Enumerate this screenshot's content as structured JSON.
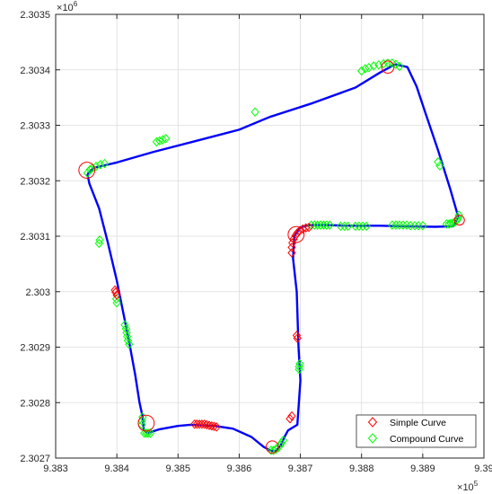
{
  "chart_data": {
    "type": "scatter",
    "title": "",
    "xlabel": "",
    "ylabel": "",
    "grid": true,
    "legend_position": "bottom-right",
    "x_exponent_label": "×10^5",
    "y_exponent_label": "×10^6",
    "x_exponent_base": "10",
    "x_exponent_power": "5",
    "y_exponent_base": "10",
    "y_exponent_power": "6",
    "xlim": [
      938300,
      939000
    ],
    "ylim": [
      2302700,
      2303500
    ],
    "x_ticks": [
      938300,
      938400,
      938500,
      938600,
      938700,
      938800,
      938900,
      939000
    ],
    "y_ticks": [
      2302700,
      2302800,
      2302900,
      2303000,
      2303100,
      2303200,
      2303300,
      2303400,
      2303500
    ],
    "x_tick_labels": [
      "9.383",
      "9.384",
      "9.385",
      "9.386",
      "9.387",
      "9.388",
      "9.389",
      "9.39"
    ],
    "y_tick_labels": [
      "2.3027",
      "2.3028",
      "2.3029",
      "2.303",
      "2.3031",
      "2.3032",
      "2.3033",
      "2.3034",
      "2.3035"
    ],
    "colors": {
      "route": "#0000ff",
      "simple": "#ff0000",
      "compound": "#00ff00",
      "circle": "#ff0000",
      "grid": "#dcdcdc",
      "axis": "#262626"
    },
    "route": [
      [
        938352,
        2303212
      ],
      [
        938362,
        2303223
      ],
      [
        938400,
        2303233
      ],
      [
        938460,
        2303252
      ],
      [
        938530,
        2303272
      ],
      [
        938600,
        2303292
      ],
      [
        938650,
        2303315
      ],
      [
        938720,
        2303340
      ],
      [
        938790,
        2303368
      ],
      [
        938830,
        2303395
      ],
      [
        938855,
        2303410
      ],
      [
        938875,
        2303405
      ],
      [
        938890,
        2303370
      ],
      [
        938905,
        2303320
      ],
      [
        938925,
        2303255
      ],
      [
        938945,
        2303185
      ],
      [
        938958,
        2303135
      ],
      [
        938950,
        2303118
      ],
      [
        938920,
        2303117
      ],
      [
        938870,
        2303118
      ],
      [
        938830,
        2303119
      ],
      [
        938780,
        2303119
      ],
      [
        938740,
        2303120
      ],
      [
        938715,
        2303120
      ],
      [
        938700,
        2303116
      ],
      [
        938690,
        2303100
      ],
      [
        938688,
        2303060
      ],
      [
        938694,
        2303000
      ],
      [
        938697,
        2302900
      ],
      [
        938700,
        2302840
      ],
      [
        938695,
        2302760
      ],
      [
        938680,
        2302750
      ],
      [
        938675,
        2302740
      ],
      [
        938668,
        2302723
      ],
      [
        938660,
        2302713
      ],
      [
        938652,
        2302713
      ],
      [
        938640,
        2302720
      ],
      [
        938620,
        2302738
      ],
      [
        938590,
        2302753
      ],
      [
        938560,
        2302758
      ],
      [
        938520,
        2302760
      ],
      [
        938500,
        2302758
      ],
      [
        938470,
        2302752
      ],
      [
        938450,
        2302745
      ],
      [
        938444,
        2302752
      ],
      [
        938442,
        2302775
      ],
      [
        938437,
        2302800
      ],
      [
        938430,
        2302850
      ],
      [
        938420,
        2302910
      ],
      [
        938409,
        2302970
      ],
      [
        938400,
        2303020
      ],
      [
        938385,
        2303090
      ],
      [
        938371,
        2303150
      ],
      [
        938355,
        2303195
      ],
      [
        938352,
        2303212
      ]
    ],
    "series": [
      {
        "name": "Simple Curve",
        "marker": "diamond",
        "points": [
          [
            938397,
            2303003
          ],
          [
            938398,
            2302999
          ],
          [
            938400,
            2302994
          ],
          [
            938527,
            2302761
          ],
          [
            938531,
            2302761
          ],
          [
            938535,
            2302761
          ],
          [
            938539,
            2302761
          ],
          [
            938543,
            2302761
          ],
          [
            938547,
            2302760
          ],
          [
            938551,
            2302759
          ],
          [
            938555,
            2302758
          ],
          [
            938559,
            2302757
          ],
          [
            938563,
            2302756
          ],
          [
            938683,
            2302771
          ],
          [
            938686,
            2302776
          ],
          [
            938694,
            2302921
          ],
          [
            938695,
            2302916
          ],
          [
            938686,
            2303070
          ],
          [
            938686,
            2303080
          ],
          [
            938687,
            2303088
          ],
          [
            938689,
            2303095
          ],
          [
            938692,
            2303101
          ],
          [
            938695,
            2303106
          ],
          [
            938699,
            2303110
          ],
          [
            938704,
            2303113
          ],
          [
            938709,
            2303115
          ],
          [
            938714,
            2303116
          ]
        ]
      },
      {
        "name": "Compound Curve",
        "marker": "diamond",
        "points": [
          [
            938352,
            2303214
          ],
          [
            938356,
            2303220
          ],
          [
            938360,
            2303223
          ],
          [
            938366,
            2303226
          ],
          [
            938373,
            2303229
          ],
          [
            938380,
            2303231
          ],
          [
            938465,
            2303270
          ],
          [
            938470,
            2303272
          ],
          [
            938475,
            2303274
          ],
          [
            938480,
            2303276
          ],
          [
            938626,
            2303324
          ],
          [
            938800,
            2303398
          ],
          [
            938806,
            2303402
          ],
          [
            938812,
            2303404
          ],
          [
            938820,
            2303407
          ],
          [
            938828,
            2303409
          ],
          [
            938836,
            2303411
          ],
          [
            938843,
            2303412
          ],
          [
            938850,
            2303412
          ],
          [
            938856,
            2303410
          ],
          [
            938862,
            2303406
          ],
          [
            938925,
            2303234
          ],
          [
            938928,
            2303227
          ],
          [
            938939,
            2303122
          ],
          [
            938943,
            2303122
          ],
          [
            938946,
            2303123
          ],
          [
            938950,
            2303124
          ],
          [
            938953,
            2303126
          ],
          [
            938956,
            2303129
          ],
          [
            938958,
            2303133
          ],
          [
            938959,
            2303138
          ],
          [
            938900,
            2303119
          ],
          [
            938893,
            2303119
          ],
          [
            938887,
            2303119
          ],
          [
            938880,
            2303119
          ],
          [
            938874,
            2303120
          ],
          [
            938868,
            2303120
          ],
          [
            938862,
            2303120
          ],
          [
            938856,
            2303120
          ],
          [
            938850,
            2303120
          ],
          [
            938808,
            2303118
          ],
          [
            938802,
            2303118
          ],
          [
            938796,
            2303118
          ],
          [
            938790,
            2303118
          ],
          [
            938778,
            2303118
          ],
          [
            938772,
            2303118
          ],
          [
            938766,
            2303118
          ],
          [
            938748,
            2303120
          ],
          [
            938743,
            2303120
          ],
          [
            938738,
            2303120
          ],
          [
            938733,
            2303120
          ],
          [
            938728,
            2303120
          ],
          [
            938723,
            2303120
          ],
          [
            938718,
            2303120
          ],
          [
            938698,
            2302860
          ],
          [
            938698,
            2302865
          ],
          [
            938699,
            2302870
          ],
          [
            938652,
            2302714
          ],
          [
            938656,
            2302714
          ],
          [
            938660,
            2302716
          ],
          [
            938664,
            2302719
          ],
          [
            938667,
            2302723
          ],
          [
            938669,
            2302727
          ],
          [
            938672,
            2302732
          ],
          [
            938445,
            2302745
          ],
          [
            938448,
            2302745
          ],
          [
            938451,
            2302745
          ],
          [
            938455,
            2302745
          ],
          [
            938441,
            2302760
          ],
          [
            938441,
            2302767
          ],
          [
            938442,
            2302774
          ],
          [
            938420,
            2302905
          ],
          [
            938418,
            2302912
          ],
          [
            938417,
            2302919
          ],
          [
            938416,
            2302926
          ],
          [
            938415,
            2302933
          ],
          [
            938413,
            2302940
          ],
          [
            938400,
            2302980
          ],
          [
            938399,
            2302987
          ],
          [
            938371,
            2303087
          ],
          [
            938372,
            2303093
          ]
        ]
      }
    ],
    "circles": [
      {
        "x": 938351,
        "y": 2303219,
        "r": 13
      },
      {
        "x": 938843,
        "y": 2303405,
        "r": 10
      },
      {
        "x": 938960,
        "y": 2303129,
        "r": 8
      },
      {
        "x": 938693,
        "y": 2303103,
        "r": 13
      },
      {
        "x": 938448,
        "y": 2302763,
        "r": 13
      },
      {
        "x": 938654,
        "y": 2302720,
        "r": 10
      }
    ]
  }
}
